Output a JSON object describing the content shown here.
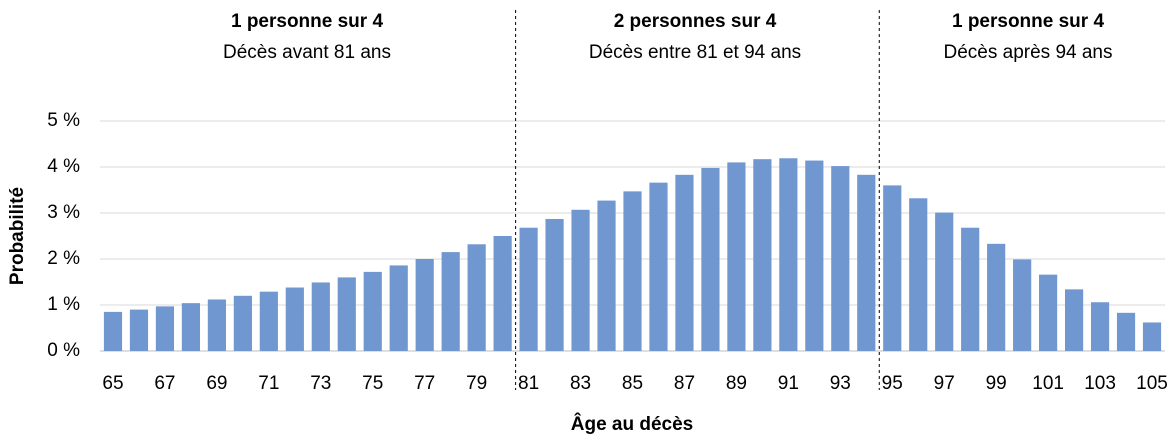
{
  "chart_data": {
    "type": "bar",
    "annotations": [
      {
        "title": "1 personne sur 4",
        "text": "Décès avant 81 ans"
      },
      {
        "title": "2 personnes sur 4",
        "text": "Décès entre 81 et 94 ans"
      },
      {
        "title": "1 personne sur 4",
        "text": "Décès après 94 ans"
      }
    ],
    "xlabel": "Âge au décès",
    "ylabel": "Probabilité",
    "categories": [
      65,
      null,
      67,
      null,
      69,
      null,
      71,
      null,
      73,
      null,
      75,
      null,
      77,
      null,
      79,
      null,
      81,
      null,
      83,
      null,
      85,
      null,
      87,
      null,
      89,
      null,
      91,
      null,
      93,
      null,
      95,
      null,
      97,
      null,
      99,
      null,
      101,
      null,
      103,
      null,
      105
    ],
    "values": [
      0.85,
      0.9,
      0.97,
      1.04,
      1.12,
      1.2,
      1.29,
      1.38,
      1.49,
      1.6,
      1.72,
      1.86,
      2.0,
      2.15,
      2.32,
      2.5,
      2.68,
      2.87,
      3.07,
      3.27,
      3.47,
      3.66,
      3.83,
      3.98,
      4.1,
      4.17,
      4.19,
      4.14,
      4.02,
      3.83,
      3.6,
      3.32,
      3.01,
      2.68,
      2.33,
      1.99,
      1.66,
      1.34,
      1.06,
      0.83,
      0.62
    ],
    "color": "#7097d0",
    "ylim": [
      0,
      5
    ],
    "yticks": [
      {
        "value": 0,
        "label": "0 %"
      },
      {
        "value": 1,
        "label": "1 %"
      },
      {
        "value": 2,
        "label": "2 %"
      },
      {
        "value": 3,
        "label": "3 %"
      },
      {
        "value": 4,
        "label": "4 %"
      },
      {
        "value": 5,
        "label": "5 %"
      }
    ],
    "grid": true
  }
}
